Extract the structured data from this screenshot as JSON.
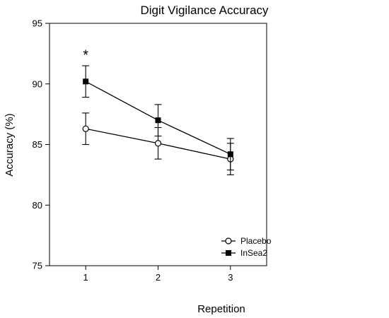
{
  "chart_data": {
    "type": "line",
    "title": "Digit Vigilance Accuracy",
    "xlabel": "Repetition",
    "ylabel": "Accuracy (%)",
    "x": [
      1,
      2,
      3
    ],
    "xticks": [
      "1",
      "2",
      "3"
    ],
    "ylim": [
      75,
      95
    ],
    "yticks": [
      75,
      80,
      85,
      90,
      95
    ],
    "grid": false,
    "legend_position": "bottom-right",
    "series": [
      {
        "name": "Placebo",
        "marker": "open-circle",
        "values": [
          86.3,
          85.1,
          83.8
        ],
        "errors": [
          1.3,
          1.3,
          1.3
        ]
      },
      {
        "name": "InSea2",
        "marker": "filled-square",
        "values": [
          90.2,
          87.0,
          84.2
        ],
        "errors": [
          1.3,
          1.3,
          1.3
        ]
      }
    ],
    "annotations": [
      {
        "text": "*",
        "x": 1,
        "y": 92.4
      }
    ]
  }
}
